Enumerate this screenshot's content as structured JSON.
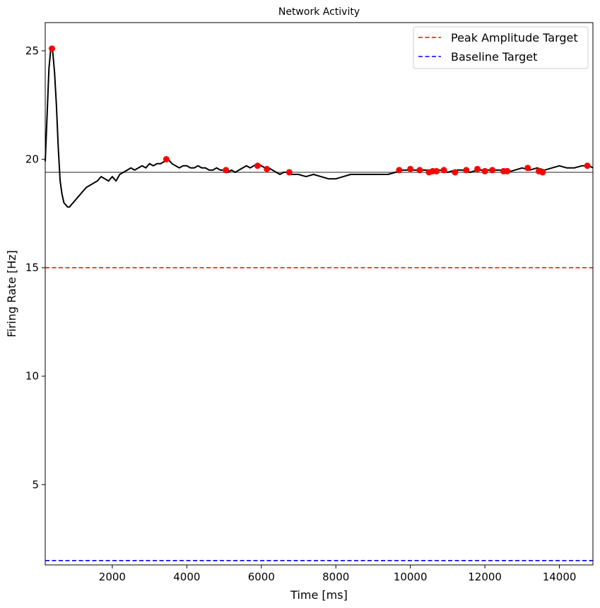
{
  "chart_data": {
    "type": "line",
    "title": "Network Activity",
    "xlabel": "Time [ms]",
    "ylabel": "Firing Rate [Hz]",
    "xlim": [
      200,
      14900
    ],
    "ylim": [
      1.3,
      26.3
    ],
    "xticks": [
      2000,
      4000,
      6000,
      8000,
      10000,
      12000,
      14000
    ],
    "yticks": [
      5,
      10,
      15,
      20,
      25
    ],
    "grid": false,
    "legend_position": "top-right",
    "series": [
      {
        "kind": "line",
        "color": "#000000",
        "x": [
          200,
          250,
          300,
          350,
          400,
          450,
          500,
          550,
          600,
          650,
          700,
          750,
          800,
          850,
          900,
          950,
          1000,
          1100,
          1200,
          1300,
          1400,
          1500,
          1600,
          1700,
          1800,
          1900,
          2000,
          2100,
          2200,
          2300,
          2400,
          2500,
          2600,
          2700,
          2800,
          2900,
          3000,
          3100,
          3200,
          3300,
          3400,
          3500,
          3600,
          3700,
          3800,
          3900,
          4000,
          4100,
          4200,
          4300,
          4400,
          4500,
          4600,
          4700,
          4800,
          4900,
          5000,
          5100,
          5200,
          5300,
          5400,
          5500,
          5600,
          5700,
          5800,
          5900,
          6000,
          6100,
          6200,
          6300,
          6400,
          6500,
          6600,
          6700,
          6800,
          6900,
          7000,
          7200,
          7400,
          7600,
          7800,
          8000,
          8200,
          8400,
          8600,
          8800,
          9000,
          9200,
          9400,
          9600,
          9800,
          10000,
          10200,
          10400,
          10600,
          10800,
          11000,
          11200,
          11400,
          11600,
          11800,
          12000,
          12200,
          12400,
          12600,
          12800,
          13000,
          13200,
          13400,
          13600,
          13800,
          14000,
          14200,
          14400,
          14600,
          14800,
          14900
        ],
        "y": [
          19.9,
          22.0,
          24.2,
          25.1,
          25.0,
          24.0,
          22.5,
          20.5,
          19.0,
          18.4,
          18.0,
          17.9,
          17.8,
          17.8,
          17.9,
          18.0,
          18.1,
          18.3,
          18.5,
          18.7,
          18.8,
          18.9,
          19.0,
          19.2,
          19.1,
          19.0,
          19.2,
          19.0,
          19.3,
          19.4,
          19.5,
          19.6,
          19.5,
          19.6,
          19.7,
          19.6,
          19.8,
          19.7,
          19.8,
          19.8,
          19.9,
          20.0,
          19.8,
          19.7,
          19.6,
          19.7,
          19.7,
          19.6,
          19.6,
          19.7,
          19.6,
          19.6,
          19.5,
          19.5,
          19.6,
          19.5,
          19.5,
          19.4,
          19.5,
          19.4,
          19.5,
          19.6,
          19.7,
          19.6,
          19.7,
          19.8,
          19.7,
          19.6,
          19.6,
          19.5,
          19.4,
          19.3,
          19.4,
          19.4,
          19.3,
          19.3,
          19.3,
          19.2,
          19.3,
          19.2,
          19.1,
          19.1,
          19.2,
          19.3,
          19.3,
          19.3,
          19.3,
          19.3,
          19.3,
          19.4,
          19.5,
          19.5,
          19.5,
          19.5,
          19.5,
          19.5,
          19.4,
          19.5,
          19.5,
          19.4,
          19.5,
          19.5,
          19.5,
          19.5,
          19.4,
          19.5,
          19.6,
          19.5,
          19.6,
          19.5,
          19.6,
          19.7,
          19.6,
          19.6,
          19.7,
          19.7,
          19.6
        ]
      },
      {
        "kind": "scatter",
        "color": "#ff0000",
        "x": [
          380,
          3450,
          5050,
          5900,
          6150,
          6750,
          9700,
          10000,
          10250,
          10500,
          10600,
          10700,
          10900,
          11200,
          11500,
          11800,
          12000,
          12200,
          12500,
          12600,
          13150,
          13450,
          13550,
          14750
        ],
        "y": [
          25.1,
          20.0,
          19.5,
          19.7,
          19.55,
          19.4,
          19.5,
          19.55,
          19.5,
          19.4,
          19.45,
          19.45,
          19.5,
          19.4,
          19.5,
          19.55,
          19.45,
          19.5,
          19.45,
          19.45,
          19.6,
          19.45,
          19.4,
          19.7
        ]
      },
      {
        "kind": "hline",
        "color": "#808080",
        "y": 19.4,
        "style": "solid"
      },
      {
        "kind": "hline",
        "name": "Peak Amplitude Target",
        "color": "#ff0000",
        "y": 15.0,
        "style": "dashed"
      },
      {
        "kind": "hline",
        "name": "Baseline Target",
        "color": "#0000ff",
        "y": 1.5,
        "style": "dashed"
      }
    ]
  }
}
